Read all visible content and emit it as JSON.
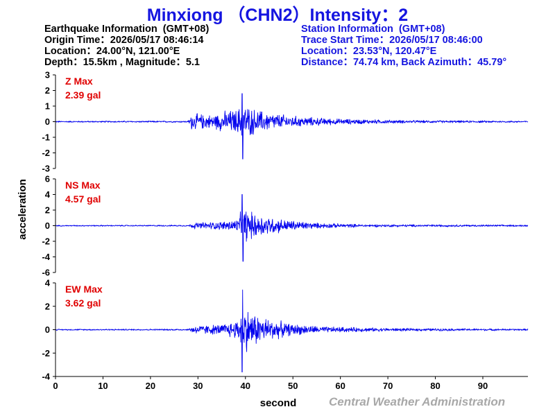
{
  "header": {
    "title": "Minxiong （CHN2）Intensity：2"
  },
  "earthquake_info": {
    "heading": "Earthquake Information  (GMT+08)",
    "origin_time": "Origin Time：2026/05/17 08:46:14",
    "location": "Location：24.00°N, 121.00°E",
    "depth_magnitude": "Depth：15.5km , Magnitude：5.1"
  },
  "station_info": {
    "heading": "Station Information  (GMT+08)",
    "trace_start": "Trace Start Time：2026/05/17 08:46:00",
    "location": "Location：23.53°N, 120.47°E",
    "distance": "Distance：74.74 km, Back Azimuth：45.79°"
  },
  "credit": "Central Weather Administration",
  "colors": {
    "trace": "#0000ee",
    "max_label": "#e00000",
    "title": "#1515e0",
    "credit": "#a8a8a8"
  },
  "chart_data": {
    "type": "line",
    "xlabel": "second",
    "ylabel": "acceleration",
    "xlim": [
      0,
      99.5
    ],
    "xticks": [
      0,
      10,
      20,
      30,
      40,
      50,
      60,
      70,
      80,
      90
    ],
    "grid": false,
    "panels": [
      {
        "channel": "Z",
        "max_label": "Z Max",
        "max_value": "2.39 gal",
        "ylim": [
          -3,
          3
        ],
        "yticks": [
          -3,
          -2,
          -1,
          0,
          1,
          2,
          3
        ],
        "envelope": [
          {
            "t": 0,
            "amp": 0.05
          },
          {
            "t": 28,
            "amp": 0.06
          },
          {
            "t": 28.6,
            "amp": 0.6
          },
          {
            "t": 33,
            "amp": 0.5
          },
          {
            "t": 36,
            "amp": 0.8
          },
          {
            "t": 38.5,
            "amp": 0.9
          },
          {
            "t": 39.3,
            "amp": 1.8
          },
          {
            "t": 40,
            "amp": 1.2
          },
          {
            "t": 42,
            "amp": 0.9
          },
          {
            "t": 46,
            "amp": 0.6
          },
          {
            "t": 52,
            "amp": 0.35
          },
          {
            "t": 60,
            "amp": 0.2
          },
          {
            "t": 75,
            "amp": 0.1
          },
          {
            "t": 99.5,
            "amp": 0.06
          }
        ],
        "peaks": [
          {
            "t": 39.3,
            "v": 1.8
          },
          {
            "t": 39.45,
            "v": -2.39
          }
        ]
      },
      {
        "channel": "NS",
        "max_label": "NS Max",
        "max_value": "4.57 gal",
        "ylim": [
          -6,
          6
        ],
        "yticks": [
          -6,
          -4,
          -2,
          0,
          2,
          4,
          6
        ],
        "envelope": [
          {
            "t": 0,
            "amp": 0.08
          },
          {
            "t": 28,
            "amp": 0.1
          },
          {
            "t": 29,
            "amp": 0.45
          },
          {
            "t": 35,
            "amp": 0.6
          },
          {
            "t": 38.5,
            "amp": 1.0
          },
          {
            "t": 39.5,
            "amp": 3.0
          },
          {
            "t": 41,
            "amp": 2.0
          },
          {
            "t": 44,
            "amp": 1.5
          },
          {
            "t": 48,
            "amp": 0.9
          },
          {
            "t": 55,
            "amp": 0.4
          },
          {
            "t": 65,
            "amp": 0.2
          },
          {
            "t": 99.5,
            "amp": 0.12
          }
        ],
        "peaks": [
          {
            "t": 39.3,
            "v": 4.0
          },
          {
            "t": 39.5,
            "v": -4.57
          }
        ]
      },
      {
        "channel": "EW",
        "max_label": "EW Max",
        "max_value": "3.62 gal",
        "ylim": [
          -4,
          4
        ],
        "yticks": [
          -4,
          -2,
          0,
          2,
          4
        ],
        "envelope": [
          {
            "t": 0,
            "amp": 0.06
          },
          {
            "t": 28,
            "amp": 0.08
          },
          {
            "t": 29,
            "amp": 0.4
          },
          {
            "t": 35,
            "amp": 0.5
          },
          {
            "t": 38.5,
            "amp": 1.0
          },
          {
            "t": 39.5,
            "amp": 2.4
          },
          {
            "t": 41,
            "amp": 1.8
          },
          {
            "t": 44,
            "amp": 1.2
          },
          {
            "t": 49,
            "amp": 0.6
          },
          {
            "t": 56,
            "amp": 0.3
          },
          {
            "t": 70,
            "amp": 0.15
          },
          {
            "t": 99.5,
            "amp": 0.08
          }
        ],
        "peaks": [
          {
            "t": 39.4,
            "v": 3.4
          },
          {
            "t": 39.3,
            "v": -3.62
          }
        ]
      }
    ]
  }
}
